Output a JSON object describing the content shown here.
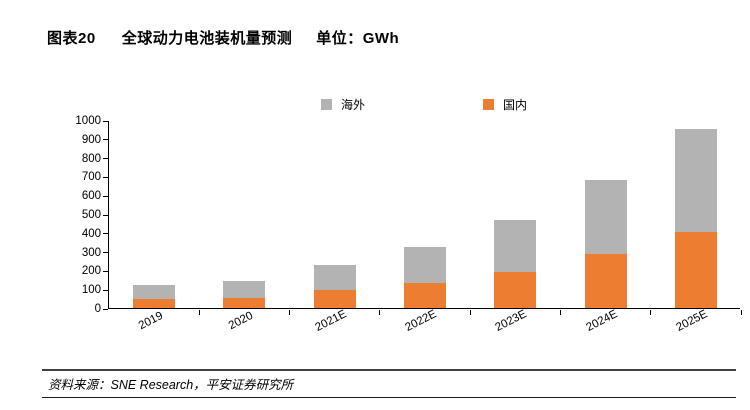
{
  "header": {
    "figure_label": "图表20",
    "title": "全球动力电池装机量预测",
    "unit_label": "单位：GWh"
  },
  "chart_data": {
    "type": "bar",
    "subtype": "stacked",
    "title": "全球动力电池装机量预测",
    "unit": "GWh",
    "categories": [
      "2019",
      "2020",
      "2021E",
      "2022E",
      "2023E",
      "2024E",
      "2025E"
    ],
    "series": [
      {
        "name": "海外",
        "color": "#B3B3B3",
        "values": [
          70,
          90,
          135,
          190,
          280,
          390,
          545
        ]
      },
      {
        "name": "国内",
        "color": "#ED7D31",
        "values": [
          50,
          55,
          95,
          135,
          190,
          290,
          405
        ]
      }
    ],
    "totals": [
      120,
      145,
      230,
      325,
      470,
      680,
      950
    ],
    "stack_order_bottom_to_top": [
      "国内",
      "海外"
    ],
    "ylim": [
      0,
      1000
    ],
    "ytick_step": 100,
    "xlabel": "",
    "ylabel": "",
    "grid": false,
    "legend_position": "top",
    "axis_color": "#000000"
  },
  "footer": {
    "source": "资料来源：SNE Research，平安证券研究所"
  }
}
